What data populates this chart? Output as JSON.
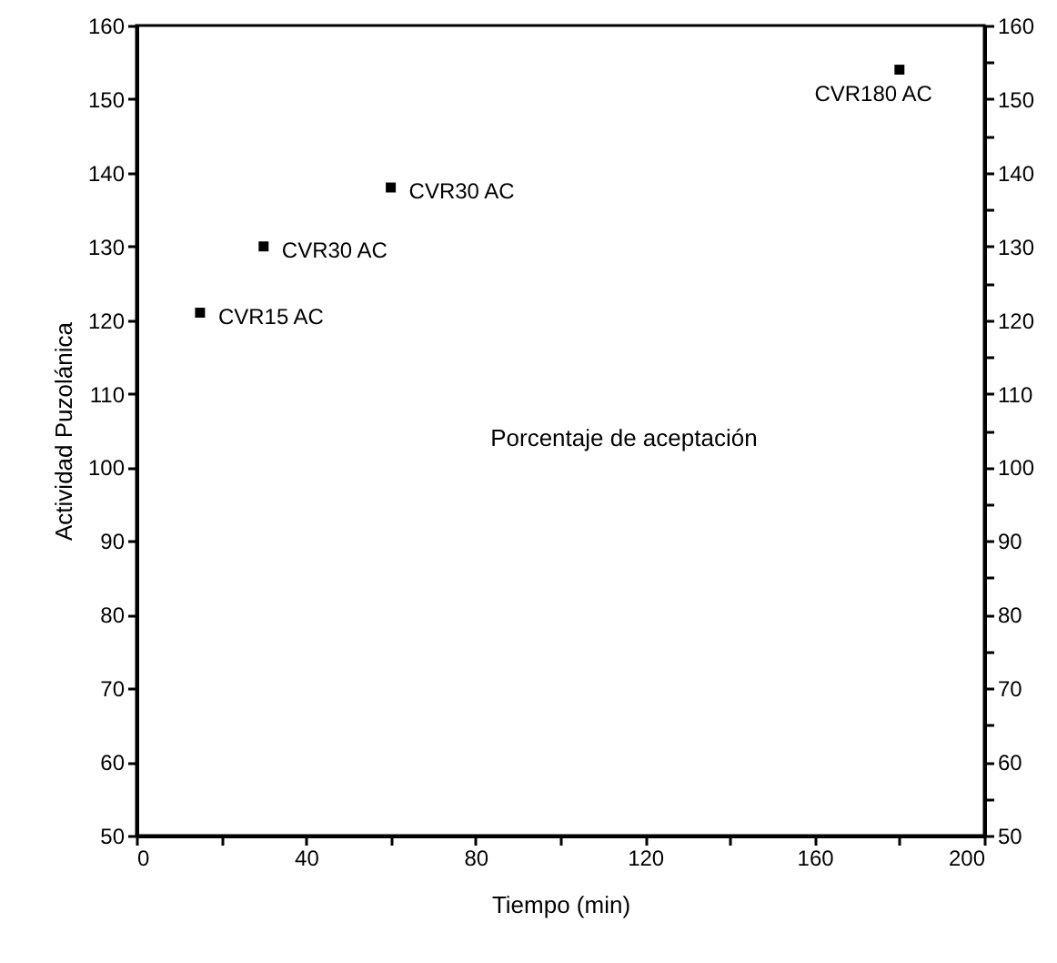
{
  "chart_data": {
    "type": "scatter",
    "xlabel": "Tiempo (min)",
    "ylabel": "Actividad Puzolánica",
    "x": [
      15,
      30,
      60,
      180
    ],
    "series": [
      {
        "color": "#000000",
        "values": [
          121,
          130,
          138,
          154
        ]
      }
    ],
    "marker": "square",
    "xlim": [
      0,
      200
    ],
    "xticks": [
      0,
      {
        "value": 20,
        "label": null
      },
      40,
      {
        "value": 60,
        "label": null
      },
      80,
      {
        "value": 100,
        "label": null
      },
      120,
      {
        "value": 140,
        "label": null
      },
      160,
      {
        "value": 180,
        "label": null
      },
      200
    ],
    "ylim": [
      50,
      160
    ],
    "yticks": [
      50,
      {
        "value": 55,
        "label": null
      },
      60,
      {
        "value": 65,
        "label": null
      },
      70,
      {
        "value": 75,
        "label": null
      },
      80,
      {
        "value": 85,
        "label": null
      },
      90,
      {
        "value": 95,
        "label": null
      },
      100,
      {
        "value": 105,
        "label": null
      },
      110,
      {
        "value": 115,
        "label": null
      },
      120,
      {
        "value": 125,
        "label": null
      },
      130,
      {
        "value": 135,
        "label": null
      },
      140,
      {
        "value": 145,
        "label": null
      },
      150,
      {
        "value": 155,
        "label": null
      },
      160
    ],
    "y2lim": [
      50,
      160
    ],
    "y2ticks": [
      50,
      {
        "value": 55,
        "label": null
      },
      60,
      {
        "value": 65,
        "label": null
      },
      70,
      {
        "value": 75,
        "label": null
      },
      80,
      {
        "value": 85,
        "label": null
      },
      90,
      {
        "value": 95,
        "label": null
      },
      100,
      {
        "value": 105,
        "label": null
      },
      110,
      {
        "value": 115,
        "label": null
      },
      120,
      {
        "value": 125,
        "label": null
      },
      130,
      {
        "value": 135,
        "label": null
      },
      140,
      {
        "value": 145,
        "label": null
      },
      150,
      {
        "value": 155,
        "label": null
      },
      160
    ],
    "annotations": [
      {
        "text": "CVR15 AC",
        "x": 15,
        "y": 121
      },
      {
        "text": "CVR30 AC",
        "x": 30,
        "y": 130
      },
      {
        "text": "CVR30 AC",
        "x": 60,
        "y": 138
      },
      {
        "text": "CVR180 AC",
        "x": 180,
        "y": 154
      },
      "Porcentaje de aceptación"
    ]
  }
}
